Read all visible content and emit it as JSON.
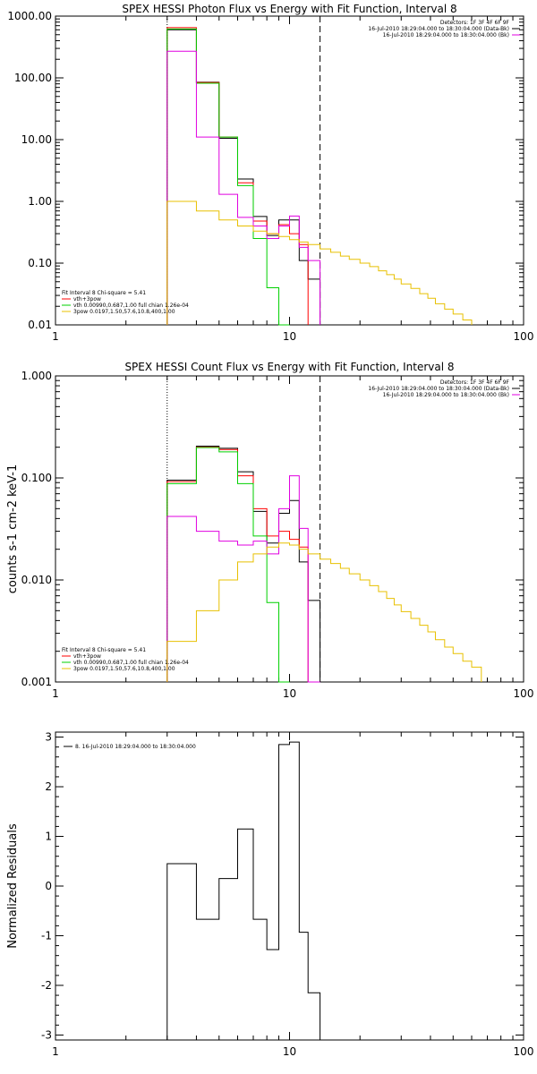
{
  "chart_data": [
    {
      "type": "line",
      "step": true,
      "title": "SPEX HESSI Photon Flux vs Energy with Fit Function, Interval 8",
      "xscale": "log",
      "yscale": "log",
      "xlim": [
        1,
        100
      ],
      "ylim": [
        0.01,
        1000
      ],
      "xticks": [
        {
          "v": 1,
          "label": "1"
        },
        {
          "v": 10,
          "label": "10"
        },
        {
          "v": 100,
          "label": "100"
        }
      ],
      "yticks": [
        {
          "v": 0.01,
          "label": "0.01"
        },
        {
          "v": 0.1,
          "label": "0.10"
        },
        {
          "v": 1,
          "label": "1.00"
        },
        {
          "v": 10,
          "label": "10.00"
        },
        {
          "v": 100,
          "label": "100.00"
        },
        {
          "v": 1000,
          "label": "1000.00"
        }
      ],
      "vlines": [
        {
          "x": 3,
          "style": "dotted",
          "color": "#000000"
        },
        {
          "x": 13.5,
          "style": "dashed",
          "color": "#000000"
        }
      ],
      "legend_top": {
        "position": "top-right",
        "lines": [
          {
            "text": "Detectors: 1F 3F 4F 6F 9F",
            "color": null
          },
          {
            "text": "16-Jul-2010 18:29:04.000 to 18:30:04.000 (Data-Bk)",
            "color": "#000000"
          },
          {
            "text": "16-Jul-2010 18:29:04.000 to 18:30:04.000 (Bk)",
            "color": "#e000e0"
          }
        ]
      },
      "legend_fit": {
        "position": "bottom-left",
        "header": "Fit Interval 8   Chi-square = 5.41",
        "entries": [
          {
            "text": "vth+3pow",
            "color": "#ff0000"
          },
          {
            "text": "vth 0.00990,0.687,1.00   full chian 1.26e-04",
            "color": "#00d000"
          },
          {
            "text": "3pow 0.0197,1.50,57.6,10.8,400,1.00",
            "color": "#e8c000"
          }
        ]
      },
      "edges": [
        3,
        4,
        5,
        6,
        7,
        8,
        9,
        10,
        11,
        12,
        13.5,
        15,
        16.5,
        18,
        20,
        22,
        24,
        26,
        28,
        30,
        33,
        36,
        39,
        42,
        46,
        50,
        55,
        60
      ],
      "series": [
        {
          "name": "Data-Bk",
          "color": "#000000",
          "values": [
            600,
            85,
            10.5,
            2.3,
            0.57,
            0.28,
            0.5,
            0.5,
            0.11,
            0.055
          ]
        },
        {
          "name": "vth+3pow",
          "color": "#ff0000",
          "values": [
            650,
            84,
            11,
            2.0,
            0.48,
            0.3,
            0.42,
            0.3,
            0.2
          ]
        },
        {
          "name": "vth",
          "color": "#00d000",
          "values": [
            620,
            82,
            11,
            1.8,
            0.25,
            0.04,
            0.0001
          ]
        },
        {
          "name": "Bk",
          "color": "#e000e0",
          "values": [
            270,
            11,
            1.3,
            0.55,
            0.4,
            0.25,
            0.4,
            0.58,
            0.18,
            0.11
          ]
        },
        {
          "name": "3pow",
          "color": "#e8c000",
          "values": [
            1.0,
            0.7,
            0.5,
            0.4,
            0.33,
            0.3,
            0.27,
            0.24,
            0.22,
            0.2,
            0.17,
            0.15,
            0.13,
            0.115,
            0.1,
            0.088,
            0.075,
            0.065,
            0.055,
            0.046,
            0.039,
            0.032,
            0.027,
            0.022,
            0.018,
            0.015,
            0.012
          ]
        }
      ]
    },
    {
      "type": "line",
      "step": true,
      "title": "SPEX HESSI Count Flux vs Energy with Fit Function, Interval 8",
      "ylabel": "counts s-1 cm-2 keV-1",
      "xscale": "log",
      "yscale": "log",
      "xlim": [
        1,
        100
      ],
      "ylim": [
        0.001,
        1
      ],
      "xticks": [
        {
          "v": 1,
          "label": "1"
        },
        {
          "v": 10,
          "label": "10"
        },
        {
          "v": 100,
          "label": "100"
        }
      ],
      "yticks": [
        {
          "v": 0.001,
          "label": "0.001"
        },
        {
          "v": 0.01,
          "label": "0.010"
        },
        {
          "v": 0.1,
          "label": "0.100"
        },
        {
          "v": 1,
          "label": "1.000"
        }
      ],
      "vlines": [
        {
          "x": 3,
          "style": "dotted",
          "color": "#000000"
        },
        {
          "x": 13.5,
          "style": "dashed",
          "color": "#000000"
        }
      ],
      "legend_top": {
        "position": "top-right",
        "lines": [
          {
            "text": "Detectors: 1F 3F 4F 6F 9F",
            "color": null
          },
          {
            "text": "16-Jul-2010 18:29:04.000 to 18:30:04.000 (Data-Bk)",
            "color": "#000000"
          },
          {
            "text": "16-Jul-2010 18:29:04.000 to 18:30:04.000 (Bk)",
            "color": "#e000e0"
          }
        ]
      },
      "legend_fit": {
        "position": "bottom-left",
        "header": "Fit Interval 8   Chi-square = 5.41",
        "entries": [
          {
            "text": "vth+3pow",
            "color": "#ff0000"
          },
          {
            "text": "vth 0.00990,0.687,1.00   full chian 1.26e-04",
            "color": "#00d000"
          },
          {
            "text": "3pow 0.0197,1.50,57.6,10.8,400,1.00",
            "color": "#e8c000"
          }
        ]
      },
      "edges": [
        3,
        4,
        5,
        6,
        7,
        8,
        9,
        10,
        11,
        12,
        13.5,
        15,
        16.5,
        18,
        20,
        22,
        24,
        26,
        28,
        30,
        33,
        36,
        39,
        42,
        46,
        50,
        55,
        60,
        66
      ],
      "series": [
        {
          "name": "Data-Bk",
          "color": "#000000",
          "values": [
            0.095,
            0.205,
            0.195,
            0.115,
            0.047,
            0.023,
            0.045,
            0.06,
            0.015,
            0.0063
          ]
        },
        {
          "name": "vth+3pow",
          "color": "#ff0000",
          "values": [
            0.092,
            0.2,
            0.19,
            0.105,
            0.05,
            0.027,
            0.03,
            0.025,
            0.021
          ]
        },
        {
          "name": "vth",
          "color": "#00d000",
          "values": [
            0.088,
            0.198,
            0.18,
            0.088,
            0.027,
            0.006,
            0.001
          ]
        },
        {
          "name": "Bk",
          "color": "#e000e0",
          "values": [
            0.042,
            0.03,
            0.024,
            0.022,
            0.024,
            0.018,
            0.05,
            0.105,
            0.032,
            0.0005
          ]
        },
        {
          "name": "3pow",
          "color": "#e8c000",
          "values": [
            0.0025,
            0.005,
            0.01,
            0.015,
            0.018,
            0.021,
            0.023,
            0.022,
            0.02,
            0.018,
            0.016,
            0.0145,
            0.013,
            0.0115,
            0.01,
            0.0088,
            0.0077,
            0.0066,
            0.0057,
            0.0049,
            0.0042,
            0.0036,
            0.0031,
            0.0026,
            0.0022,
            0.0019,
            0.0016,
            0.0014
          ]
        }
      ]
    },
    {
      "type": "line",
      "step": true,
      "title": "",
      "ylabel": "Normalized Residuals",
      "xscale": "log",
      "yscale": "linear",
      "xlim": [
        1,
        100
      ],
      "ylim": [
        -3.1,
        3.1
      ],
      "xticks": [
        {
          "v": 1,
          "label": "1"
        },
        {
          "v": 10,
          "label": "10"
        },
        {
          "v": 100,
          "label": "100"
        }
      ],
      "yticks": [
        {
          "v": -3,
          "label": "-3"
        },
        {
          "v": -2,
          "label": "-2"
        },
        {
          "v": -1,
          "label": "-1"
        },
        {
          "v": 0,
          "label": "0"
        },
        {
          "v": 1,
          "label": "1"
        },
        {
          "v": 2,
          "label": "2"
        },
        {
          "v": 3,
          "label": "3"
        }
      ],
      "vlines": [],
      "legend_res": {
        "position": "top-left",
        "text": "8. 16-Jul-2010 18:29:04.000 to 18:30:04.000",
        "color": "#000000"
      },
      "edges": [
        3,
        4,
        5,
        6,
        7,
        8,
        9,
        10,
        11,
        12,
        13.5
      ],
      "series": [
        {
          "name": "residuals",
          "color": "#000000",
          "values": [
            0.45,
            -0.67,
            0.15,
            1.15,
            -0.67,
            -1.28,
            2.85,
            2.9,
            -0.93,
            -2.15
          ]
        }
      ]
    }
  ]
}
